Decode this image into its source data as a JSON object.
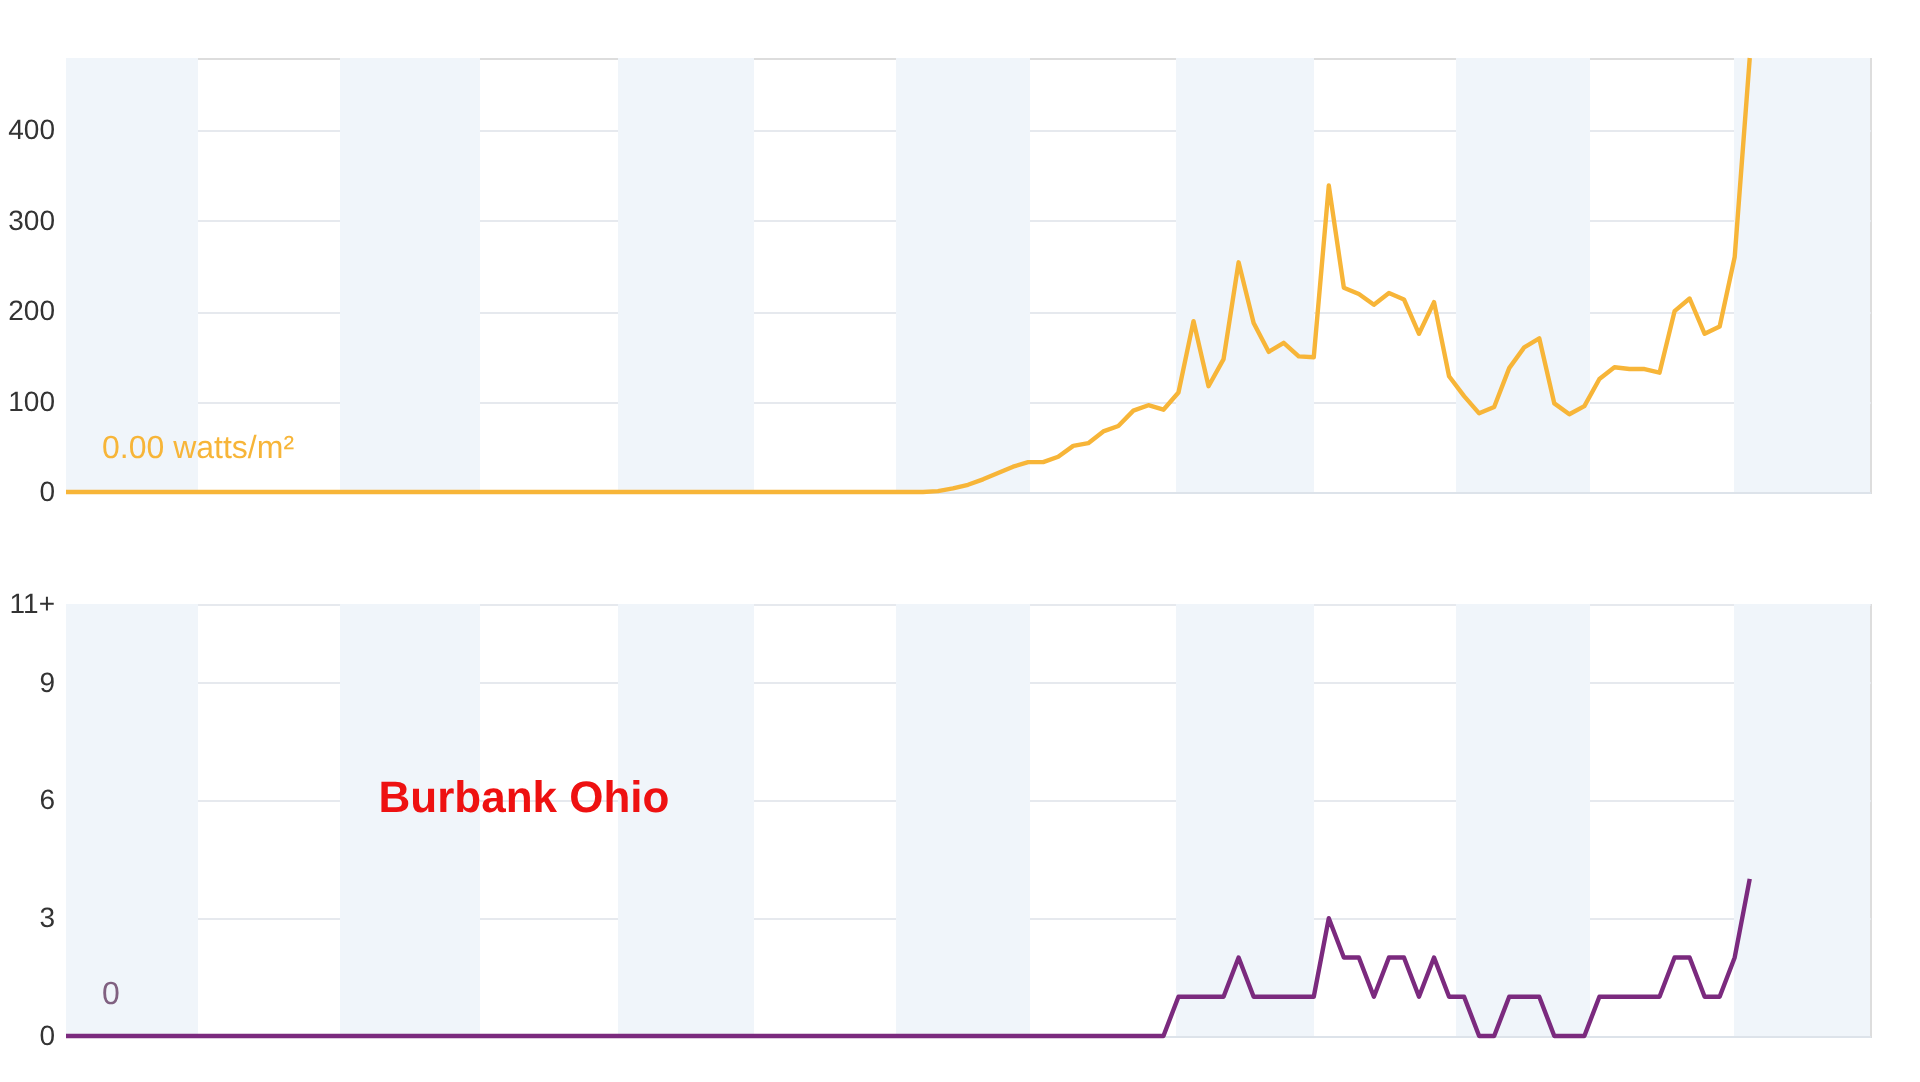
{
  "chart_data": [
    {
      "type": "line",
      "tick_labels": "y",
      "ylim": [
        0,
        480
      ],
      "yticks": [
        0,
        100,
        200,
        300,
        400
      ],
      "grid": "y",
      "marker": "none",
      "annotations": [
        "0.00 watts/m²"
      ],
      "categories": [
        null,
        null,
        null,
        null,
        null,
        null,
        null,
        null,
        null,
        null,
        null,
        null,
        null,
        null,
        null,
        null,
        null,
        null,
        null,
        null,
        null,
        null,
        null,
        null,
        null,
        null,
        null,
        null,
        null,
        null,
        null,
        null,
        null,
        null,
        null,
        null,
        null,
        null,
        null,
        null,
        null,
        null,
        null,
        null,
        null,
        null,
        null,
        null,
        null,
        null,
        null,
        null,
        null,
        null,
        null,
        null,
        null,
        null,
        null,
        null,
        null,
        null,
        null,
        null,
        null,
        null,
        null,
        null,
        null,
        null,
        null,
        null,
        null,
        null,
        null,
        null,
        null,
        null,
        null,
        null,
        null,
        null,
        null,
        null,
        null,
        null,
        null,
        null,
        null,
        null,
        null,
        null,
        null,
        null,
        null,
        null,
        null,
        null,
        null,
        null,
        null,
        null,
        null,
        null,
        null,
        null,
        null,
        null,
        null,
        null,
        null,
        null,
        null,
        null,
        null,
        null,
        null,
        null,
        null,
        null,
        null
      ],
      "series": [
        {
          "color": "#f7b538",
          "values": [
            0,
            0,
            0,
            0,
            0,
            0,
            0,
            0,
            0,
            0,
            0,
            0,
            0,
            0,
            0,
            0,
            0,
            0,
            0,
            0,
            0,
            0,
            0,
            0,
            0,
            0,
            0,
            0,
            0,
            0,
            0,
            0,
            0,
            0,
            0,
            0,
            0,
            0,
            0,
            0,
            0,
            0,
            0,
            0,
            0,
            0,
            0,
            0,
            0,
            0,
            0,
            0,
            0,
            0,
            0,
            0,
            0,
            0,
            1,
            4,
            8,
            14,
            21,
            28,
            33,
            33,
            39,
            51,
            54,
            67,
            73,
            90,
            96,
            91,
            110,
            189,
            117,
            147,
            254,
            187,
            155,
            165,
            150,
            149,
            339,
            226,
            219,
            207,
            220,
            213,
            175,
            210,
            128,
            106,
            87,
            94,
            137,
            160,
            170,
            98,
            86,
            95,
            125,
            138,
            136,
            136,
            132,
            200,
            214,
            175,
            183,
            260,
            480,
            null,
            null,
            null,
            null,
            null,
            null,
            null,
            null
          ]
        }
      ]
    },
    {
      "type": "line",
      "tick_labels": "y",
      "ylim": [
        0,
        11
      ],
      "yticks": [
        0,
        3,
        6,
        9,
        {
          "value": 11,
          "label": "11+"
        }
      ],
      "grid": "y",
      "marker": "none",
      "annotations": [
        "Burbank Ohio",
        "0"
      ],
      "categories": [
        null,
        null,
        null,
        null,
        null,
        null,
        null,
        null,
        null,
        null,
        null,
        null,
        null,
        null,
        null,
        null,
        null,
        null,
        null,
        null,
        null,
        null,
        null,
        null,
        null,
        null,
        null,
        null,
        null,
        null,
        null,
        null,
        null,
        null,
        null,
        null,
        null,
        null,
        null,
        null,
        null,
        null,
        null,
        null,
        null,
        null,
        null,
        null,
        null,
        null,
        null,
        null,
        null,
        null,
        null,
        null,
        null,
        null,
        null,
        null,
        null,
        null,
        null,
        null,
        null,
        null,
        null,
        null,
        null,
        null,
        null,
        null,
        null,
        null,
        null,
        null,
        null,
        null,
        null,
        null,
        null,
        null,
        null,
        null,
        null,
        null,
        null,
        null,
        null,
        null,
        null,
        null,
        null,
        null,
        null,
        null,
        null,
        null,
        null,
        null,
        null,
        null,
        null,
        null,
        null,
        null,
        null,
        null,
        null,
        null,
        null,
        null,
        null,
        null,
        null,
        null,
        null,
        null,
        null,
        null,
        null
      ],
      "series": [
        {
          "color": "#7b2a7e",
          "values": [
            0,
            0,
            0,
            0,
            0,
            0,
            0,
            0,
            0,
            0,
            0,
            0,
            0,
            0,
            0,
            0,
            0,
            0,
            0,
            0,
            0,
            0,
            0,
            0,
            0,
            0,
            0,
            0,
            0,
            0,
            0,
            0,
            0,
            0,
            0,
            0,
            0,
            0,
            0,
            0,
            0,
            0,
            0,
            0,
            0,
            0,
            0,
            0,
            0,
            0,
            0,
            0,
            0,
            0,
            0,
            0,
            0,
            0,
            0,
            0,
            0,
            0,
            0,
            0,
            0,
            0,
            0,
            0,
            0,
            0,
            0,
            0,
            0,
            0,
            1,
            1,
            1,
            1,
            2,
            1,
            1,
            1,
            1,
            1,
            3,
            2,
            2,
            1,
            2,
            2,
            1,
            2,
            1,
            1,
            0,
            0,
            1,
            1,
            1,
            0,
            0,
            0,
            1,
            1,
            1,
            1,
            1,
            2,
            2,
            1,
            1,
            2,
            4,
            null,
            null,
            null,
            null,
            null,
            null,
            null,
            null
          ]
        }
      ]
    }
  ]
}
